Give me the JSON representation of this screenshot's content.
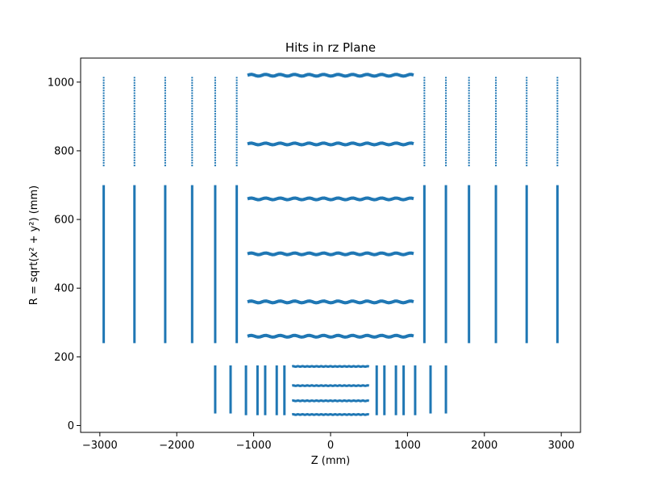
{
  "chart_data": {
    "type": "scatter",
    "title": "Hits in rz Plane",
    "xlabel": "Z (mm)",
    "ylabel": "R = sqrt(x² + y²) (mm)",
    "xlim": [
      -3250,
      3250
    ],
    "ylim": [
      -20,
      1070
    ],
    "xticks": [
      -3000,
      -2000,
      -1000,
      0,
      1000,
      2000,
      3000
    ],
    "yticks": [
      0,
      200,
      400,
      600,
      800,
      1000
    ],
    "grid": false,
    "color": "#1f77b4",
    "series": [
      {
        "kind": "barrel",
        "segments": [
          {
            "r": 32,
            "z": [
              -500,
              500
            ]
          },
          {
            "r": 72,
            "z": [
              -500,
              500
            ]
          },
          {
            "r": 116,
            "z": [
              -500,
              500
            ]
          },
          {
            "r": 172,
            "z": [
              -500,
              500
            ]
          },
          {
            "r": 260,
            "z": [
              -1080,
              1080
            ]
          },
          {
            "r": 360,
            "z": [
              -1080,
              1080
            ]
          },
          {
            "r": 500,
            "z": [
              -1080,
              1080
            ]
          },
          {
            "r": 660,
            "z": [
              -1080,
              1080
            ]
          },
          {
            "r": 820,
            "z": [
              -1080,
              1080
            ]
          },
          {
            "r": 1020,
            "z": [
              -1080,
              1080
            ]
          }
        ]
      },
      {
        "kind": "endcap",
        "segments": [
          {
            "z": -1500,
            "r": [
              35,
              175
            ]
          },
          {
            "z": -1300,
            "r": [
              35,
              175
            ]
          },
          {
            "z": -1100,
            "r": [
              30,
              175
            ]
          },
          {
            "z": -950,
            "r": [
              30,
              175
            ]
          },
          {
            "z": -850,
            "r": [
              30,
              175
            ]
          },
          {
            "z": -700,
            "r": [
              30,
              175
            ]
          },
          {
            "z": -600,
            "r": [
              30,
              175
            ]
          },
          {
            "z": 600,
            "r": [
              30,
              175
            ]
          },
          {
            "z": 700,
            "r": [
              30,
              175
            ]
          },
          {
            "z": 850,
            "r": [
              30,
              175
            ]
          },
          {
            "z": 950,
            "r": [
              30,
              175
            ]
          },
          {
            "z": 1100,
            "r": [
              30,
              175
            ]
          },
          {
            "z": 1300,
            "r": [
              35,
              175
            ]
          },
          {
            "z": 1500,
            "r": [
              35,
              175
            ]
          },
          {
            "z": -2950,
            "r": [
              240,
              700
            ]
          },
          {
            "z": -2550,
            "r": [
              240,
              700
            ]
          },
          {
            "z": -2150,
            "r": [
              240,
              700
            ]
          },
          {
            "z": -1800,
            "r": [
              240,
              700
            ]
          },
          {
            "z": -1500,
            "r": [
              240,
              700
            ]
          },
          {
            "z": -1220,
            "r": [
              240,
              700
            ]
          },
          {
            "z": 1220,
            "r": [
              240,
              700
            ]
          },
          {
            "z": 1500,
            "r": [
              240,
              700
            ]
          },
          {
            "z": 1800,
            "r": [
              240,
              700
            ]
          },
          {
            "z": 2150,
            "r": [
              240,
              700
            ]
          },
          {
            "z": 2550,
            "r": [
              240,
              700
            ]
          },
          {
            "z": 2950,
            "r": [
              240,
              700
            ]
          },
          {
            "z": -2950,
            "r": [
              755,
              1015
            ]
          },
          {
            "z": -2550,
            "r": [
              755,
              1015
            ]
          },
          {
            "z": -2150,
            "r": [
              755,
              1015
            ]
          },
          {
            "z": -1800,
            "r": [
              755,
              1015
            ]
          },
          {
            "z": -1500,
            "r": [
              755,
              1015
            ]
          },
          {
            "z": -1220,
            "r": [
              755,
              1015
            ]
          },
          {
            "z": 1220,
            "r": [
              755,
              1015
            ]
          },
          {
            "z": 1500,
            "r": [
              755,
              1015
            ]
          },
          {
            "z": 1800,
            "r": [
              755,
              1015
            ]
          },
          {
            "z": 2150,
            "r": [
              755,
              1015
            ]
          },
          {
            "z": 2550,
            "r": [
              755,
              1015
            ]
          },
          {
            "z": 2950,
            "r": [
              755,
              1015
            ]
          }
        ]
      }
    ]
  }
}
